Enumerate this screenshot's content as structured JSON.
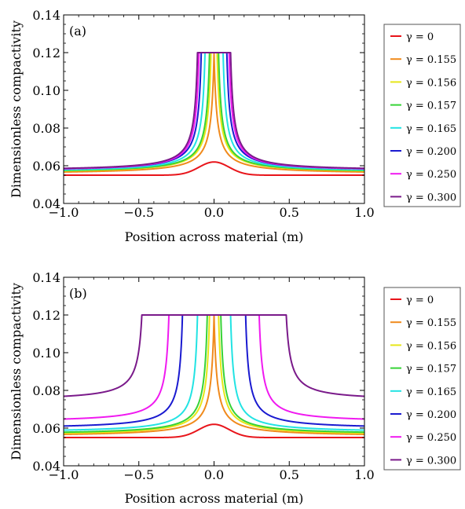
{
  "chart_data": [
    {
      "type": "line",
      "panel_label": "(a)",
      "xlabel": "Position across material (m)",
      "ylabel": "Dimensionless compactivity",
      "xlim": [
        -1.0,
        1.0
      ],
      "ylim": [
        0.04,
        0.14
      ],
      "x_ticks": [
        "−1.0",
        "−0.5",
        "0.0",
        "0.5",
        "1.0"
      ],
      "y_ticks": [
        "0.04",
        "0.06",
        "0.08",
        "0.10",
        "0.12",
        "0.14"
      ],
      "grid": false,
      "legend_position": "right",
      "series": [
        {
          "name": "γ = 0",
          "color": "#e8141a",
          "base": 0.055,
          "peak": 0.062,
          "half_width": 0.0,
          "kind": "bump"
        },
        {
          "name": "γ = 0.155",
          "color": "#f08a1c",
          "base": 0.0555,
          "peak": 0.12,
          "half_width": 0.0,
          "kind": "cusp"
        },
        {
          "name": "γ = 0.156",
          "color": "#e6e61a",
          "base": 0.056,
          "peak": 0.12,
          "half_width": 0.02,
          "kind": "plateau"
        },
        {
          "name": "γ = 0.157",
          "color": "#36d336",
          "base": 0.0562,
          "peak": 0.12,
          "half_width": 0.03,
          "kind": "plateau"
        },
        {
          "name": "γ = 0.165",
          "color": "#22e3e3",
          "base": 0.0565,
          "peak": 0.12,
          "half_width": 0.06,
          "kind": "plateau"
        },
        {
          "name": "γ = 0.200",
          "color": "#1a1ad0",
          "base": 0.057,
          "peak": 0.12,
          "half_width": 0.085,
          "kind": "plateau"
        },
        {
          "name": "γ = 0.250",
          "color": "#f01af0",
          "base": 0.057,
          "peak": 0.12,
          "half_width": 0.1,
          "kind": "plateau"
        },
        {
          "name": "γ = 0.300",
          "color": "#7a1a8a",
          "base": 0.0572,
          "peak": 0.12,
          "half_width": 0.11,
          "kind": "plateau"
        }
      ]
    },
    {
      "type": "line",
      "panel_label": "(b)",
      "xlabel": "Position across material (m)",
      "ylabel": "Dimensionless compactivity",
      "xlim": [
        -1.0,
        1.0
      ],
      "ylim": [
        0.04,
        0.14
      ],
      "x_ticks": [
        "−1.0",
        "−0.5",
        "0.0",
        "0.5",
        "1.0"
      ],
      "y_ticks": [
        "0.04",
        "0.06",
        "0.08",
        "0.10",
        "0.12",
        "0.14"
      ],
      "grid": false,
      "legend_position": "right",
      "series": [
        {
          "name": "γ = 0",
          "color": "#e8141a",
          "base": 0.055,
          "peak": 0.062,
          "half_width": 0.0,
          "kind": "bump"
        },
        {
          "name": "γ = 0.155",
          "color": "#f08a1c",
          "base": 0.0555,
          "peak": 0.12,
          "half_width": 0.0,
          "kind": "cusp"
        },
        {
          "name": "γ = 0.156",
          "color": "#e6e61a",
          "base": 0.056,
          "peak": 0.12,
          "half_width": 0.03,
          "kind": "plateau"
        },
        {
          "name": "γ = 0.157",
          "color": "#36d336",
          "base": 0.0565,
          "peak": 0.12,
          "half_width": 0.045,
          "kind": "plateau"
        },
        {
          "name": "γ = 0.165",
          "color": "#22e3e3",
          "base": 0.0575,
          "peak": 0.12,
          "half_width": 0.11,
          "kind": "plateau"
        },
        {
          "name": "γ = 0.200",
          "color": "#1a1ad0",
          "base": 0.0595,
          "peak": 0.12,
          "half_width": 0.21,
          "kind": "plateau"
        },
        {
          "name": "γ = 0.250",
          "color": "#f01af0",
          "base": 0.063,
          "peak": 0.12,
          "half_width": 0.3,
          "kind": "plateau"
        },
        {
          "name": "γ = 0.300",
          "color": "#7a1a8a",
          "base": 0.0745,
          "peak": 0.12,
          "half_width": 0.48,
          "kind": "plateau"
        }
      ]
    }
  ]
}
